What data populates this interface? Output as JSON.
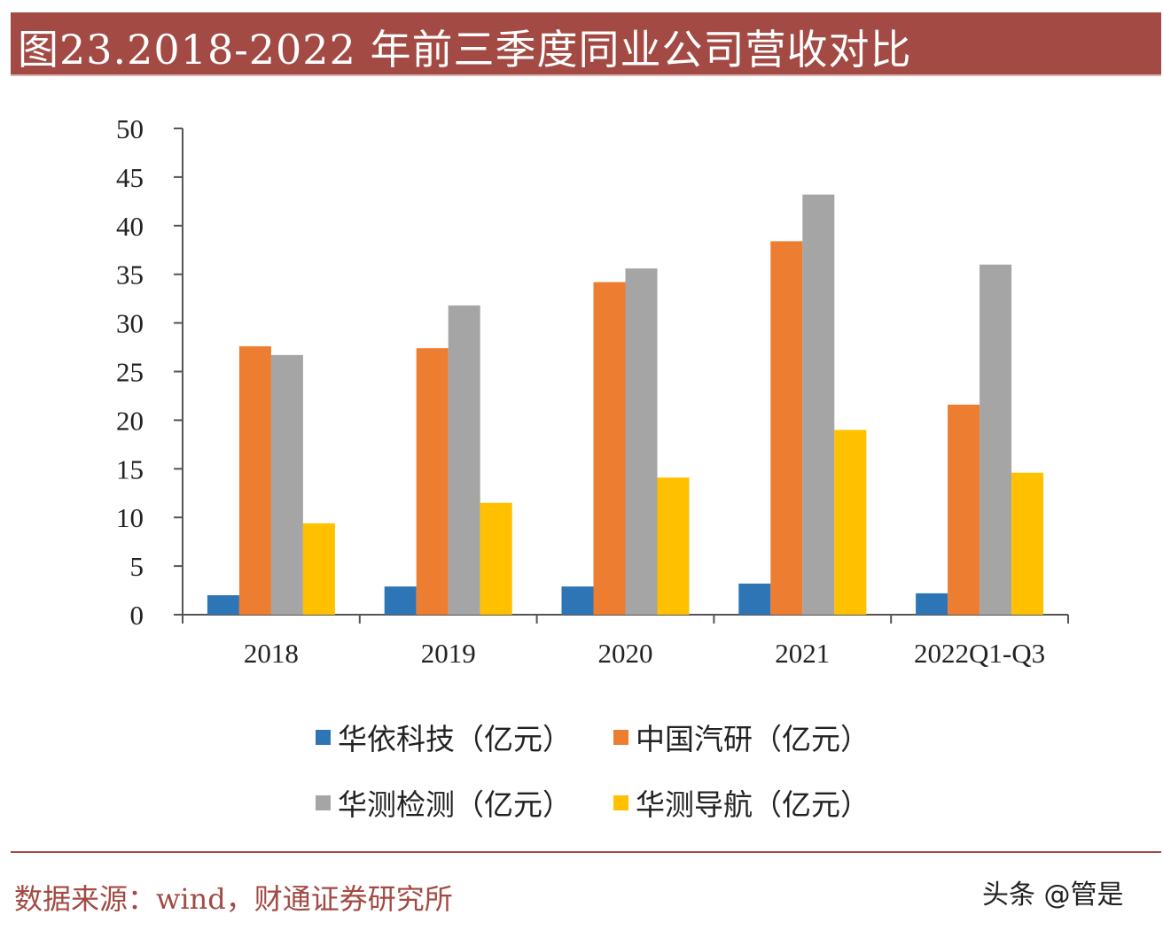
{
  "title": "图23.2018-2022 年前三季度同业公司营收对比",
  "source": "数据来源：wind，财通证券研究所",
  "watermark": "头条 @管是",
  "chart_data": {
    "type": "bar",
    "categories": [
      "2018",
      "2019",
      "2020",
      "2021",
      "2022Q1-Q3"
    ],
    "series": [
      {
        "name": "华依科技（亿元）",
        "color": "#2e75b6",
        "values": [
          2.0,
          2.9,
          2.9,
          3.2,
          2.2
        ]
      },
      {
        "name": "中国汽研（亿元）",
        "color": "#ed7d31",
        "values": [
          27.6,
          27.4,
          34.2,
          38.4,
          21.6
        ]
      },
      {
        "name": "华测检测（亿元）",
        "color": "#a5a5a5",
        "values": [
          26.7,
          31.8,
          35.6,
          43.2,
          36.0
        ]
      },
      {
        "name": "华测导航（亿元）",
        "color": "#ffc000",
        "values": [
          9.4,
          11.5,
          14.1,
          19.0,
          14.6
        ]
      }
    ],
    "yticks": [
      "0",
      "5",
      "10",
      "15",
      "20",
      "25",
      "30",
      "35",
      "40",
      "45",
      "50"
    ],
    "ylim": [
      0,
      50
    ],
    "grid": false,
    "legend_position": "bottom"
  }
}
